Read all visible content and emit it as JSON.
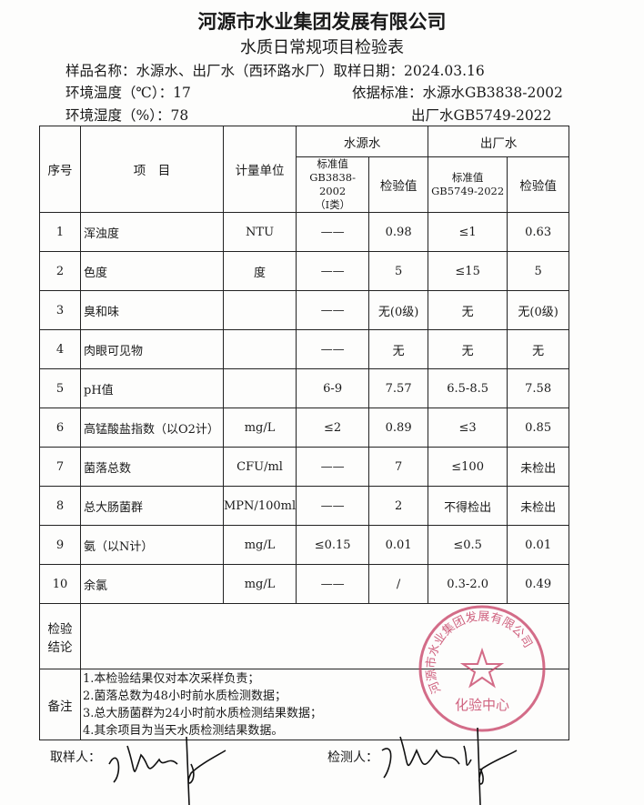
{
  "title": "河源市水业集团发展有限公司",
  "subtitle": "水质日常规项目检验表",
  "meta": {
    "sample_name": "样品名称：水源水、出厂水（西环路水厂）取样日期：2024.03.16",
    "temperature": "环境温度（℃）：17",
    "standard1": "依据标准：水源水GB3838-2002",
    "humidity": "环境湿度（%）：78",
    "standard2": "出厂水GB5749-2022"
  },
  "header": {
    "no": "序号",
    "item": "项　目",
    "unit": "计量单位",
    "source": "水源水",
    "plant": "出厂水",
    "std_src": "标准值",
    "std_src_code": "GB3838-2002",
    "std_src_class": "（Ⅰ类）",
    "val": "检验值",
    "std_plant": "标准值",
    "std_plant_code": "GB5749-2022"
  },
  "rows": [
    {
      "no": "1",
      "item": "浑浊度",
      "unit": "NTU",
      "s_std": "——",
      "s_val": "0.98",
      "p_std": "≤1",
      "p_val": "0.63"
    },
    {
      "no": "2",
      "item": "色度",
      "unit": "度",
      "s_std": "——",
      "s_val": "5",
      "p_std": "≤15",
      "p_val": "5"
    },
    {
      "no": "3",
      "item": "臭和味",
      "unit": "",
      "s_std": "——",
      "s_val": "无(0级)",
      "p_std": "无",
      "p_val": "无(0级)"
    },
    {
      "no": "4",
      "item": "肉眼可见物",
      "unit": "",
      "s_std": "——",
      "s_val": "无",
      "p_std": "无",
      "p_val": "无"
    },
    {
      "no": "5",
      "item": "pH值",
      "unit": "",
      "s_std": "6-9",
      "s_val": "7.57",
      "p_std": "6.5-8.5",
      "p_val": "7.58"
    },
    {
      "no": "6",
      "item": "高锰酸盐指数（以O2计）",
      "unit": "mg/L",
      "s_std": "≤2",
      "s_val": "0.89",
      "p_std": "≤3",
      "p_val": "0.85"
    },
    {
      "no": "7",
      "item": "菌落总数",
      "unit": "CFU/ml",
      "s_std": "——",
      "s_val": "7",
      "p_std": "≤100",
      "p_val": "未检出"
    },
    {
      "no": "8",
      "item": "总大肠菌群",
      "unit": "MPN/100ml",
      "s_std": "——",
      "s_val": "2",
      "p_std": "不得检出",
      "p_val": "未检出"
    },
    {
      "no": "9",
      "item": "氨（以N计）",
      "unit": "mg/L",
      "s_std": "≤0.15",
      "s_val": "0.01",
      "p_std": "≤0.5",
      "p_val": "0.01"
    },
    {
      "no": "10",
      "item": "余氯",
      "unit": "mg/L",
      "s_std": "——",
      "s_val": "/",
      "p_std": "0.3-2.0",
      "p_val": "0.49"
    }
  ],
  "conclusion_label": "检验结论",
  "notes_label": "备注",
  "notes": [
    "1.本检验结果仅对本次采样负责；",
    "2.菌落总数为48小时前水质检测数据；",
    "3.总大肠菌群为24小时前水质检测结果数据；",
    "4.其余项目为当天水质检测结果数据。"
  ],
  "stamp": {
    "text": "河源市水业集团发展有限公司",
    "center": "化验中心",
    "color": "#c8476a"
  },
  "sampler_label": "取样人：",
  "tester_label": "检测人："
}
